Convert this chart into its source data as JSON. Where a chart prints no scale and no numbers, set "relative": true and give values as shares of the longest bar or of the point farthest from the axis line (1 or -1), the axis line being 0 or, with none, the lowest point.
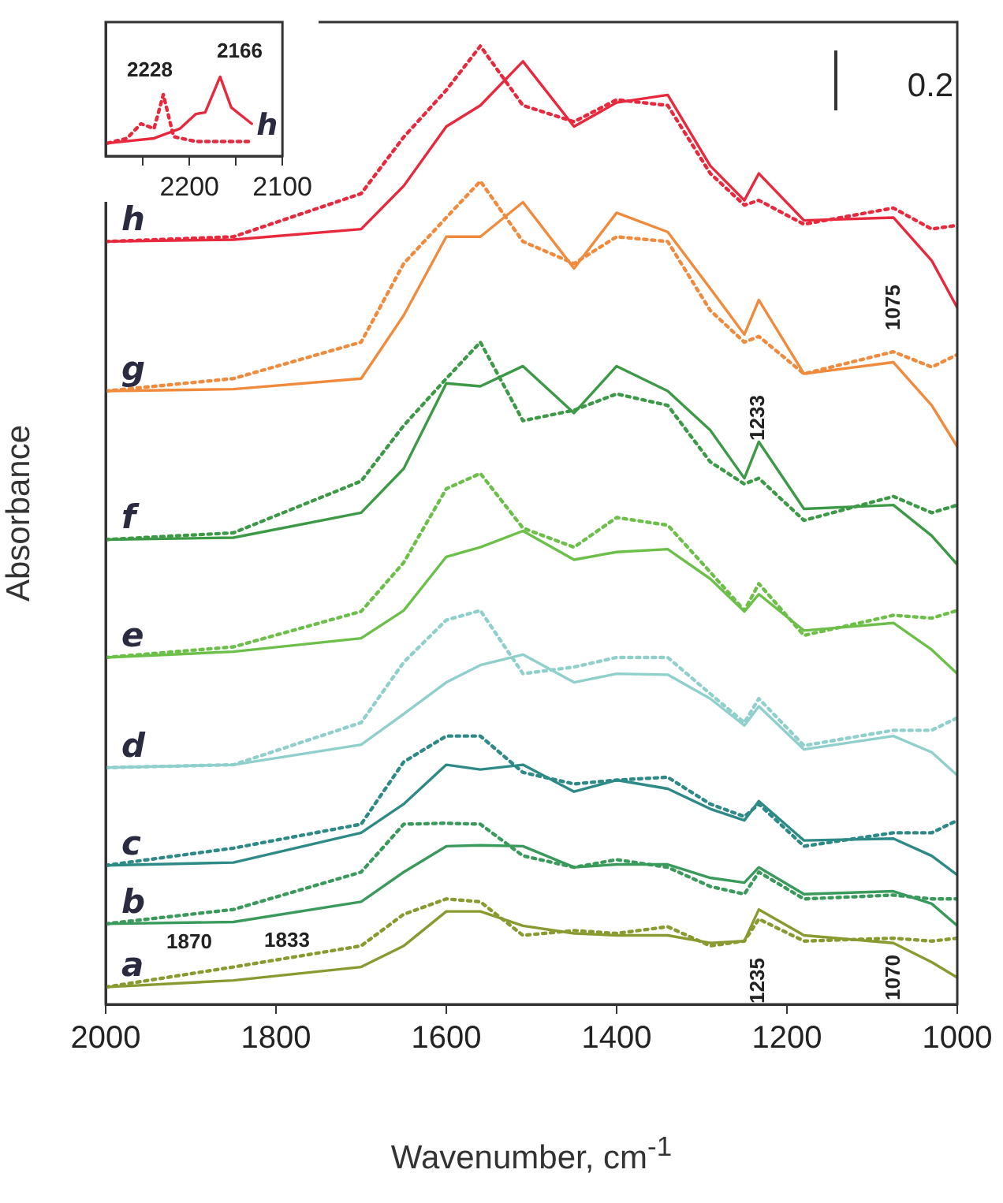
{
  "chart_data": [
    {
      "type": "line",
      "relative": true,
      "xlabel": "Wavenumber, cm$^{-1}$",
      "ylabel": "Absorbance",
      "xlim": [
        2000,
        1000
      ],
      "xticks": [
        2000,
        1800,
        1600,
        1400,
        1200,
        1000
      ],
      "grid": false,
      "legend": false,
      "tick_labels": "x",
      "marker": "none",
      "x": [
        2000,
        1850,
        1700,
        1650,
        1600,
        1560,
        1510,
        1450,
        1400,
        1340,
        1290,
        1250,
        1233,
        1180,
        1075,
        1030,
        1000
      ],
      "series": [
        {
          "name": "h",
          "color": "#e8283c",
          "line_style": "solid",
          "values": [
            0.796,
            0.798,
            0.809,
            0.854,
            0.916,
            0.938,
            0.984,
            0.916,
            0.941,
            0.949,
            0.875,
            0.839,
            0.867,
            0.818,
            0.821,
            0.776,
            0.727
          ]
        },
        {
          "color": "#e8283c",
          "line_style": "dotted",
          "values": [
            0.796,
            0.801,
            0.846,
            0.905,
            0.954,
            1,
            0.938,
            0.921,
            0.944,
            0.938,
            0.867,
            0.834,
            0.839,
            0.814,
            0.831,
            0.809,
            0.813
          ]
        },
        {
          "name": "g",
          "color": "#f08a3c",
          "line_style": "solid",
          "values": [
            0.64,
            0.642,
            0.653,
            0.719,
            0.801,
            0.801,
            0.837,
            0.768,
            0.826,
            0.806,
            0.747,
            0.699,
            0.735,
            0.658,
            0.67,
            0.625,
            0.582
          ]
        },
        {
          "color": "#f08a3c",
          "line_style": "dotted",
          "values": [
            0.64,
            0.653,
            0.691,
            0.773,
            0.821,
            0.859,
            0.796,
            0.773,
            0.801,
            0.796,
            0.724,
            0.691,
            0.697,
            0.658,
            0.681,
            0.665,
            0.678
          ]
        },
        {
          "name": "f",
          "color": "#3c9a46",
          "line_style": "solid",
          "values": [
            0.485,
            0.487,
            0.513,
            0.559,
            0.648,
            0.645,
            0.666,
            0.617,
            0.666,
            0.64,
            0.599,
            0.549,
            0.587,
            0.517,
            0.521,
            0.489,
            0.459
          ]
        },
        {
          "color": "#3c9a46",
          "line_style": "dotted",
          "values": [
            0.485,
            0.492,
            0.546,
            0.604,
            0.653,
            0.691,
            0.609,
            0.62,
            0.637,
            0.625,
            0.566,
            0.543,
            0.549,
            0.505,
            0.53,
            0.513,
            0.521
          ]
        },
        {
          "name": "e",
          "color": "#6cc04a",
          "line_style": "solid",
          "values": [
            0.362,
            0.368,
            0.382,
            0.411,
            0.467,
            0.477,
            0.494,
            0.464,
            0.472,
            0.475,
            0.444,
            0.41,
            0.428,
            0.39,
            0.398,
            0.37,
            0.345
          ]
        },
        {
          "color": "#6cc04a",
          "line_style": "dotted",
          "values": [
            0.362,
            0.373,
            0.41,
            0.461,
            0.538,
            0.554,
            0.497,
            0.477,
            0.508,
            0.5,
            0.451,
            0.411,
            0.439,
            0.385,
            0.406,
            0.403,
            0.411
          ]
        },
        {
          "name": "d",
          "color": "#8fd0cc",
          "line_style": "solid",
          "values": [
            0.247,
            0.25,
            0.271,
            0.303,
            0.336,
            0.354,
            0.365,
            0.336,
            0.345,
            0.344,
            0.319,
            0.291,
            0.311,
            0.266,
            0.28,
            0.263,
            0.239
          ]
        },
        {
          "color": "#8fd0cc",
          "line_style": "dotted",
          "values": [
            0.247,
            0.25,
            0.294,
            0.357,
            0.401,
            0.411,
            0.345,
            0.352,
            0.362,
            0.362,
            0.324,
            0.294,
            0.319,
            0.27,
            0.286,
            0.286,
            0.299
          ]
        },
        {
          "name": "c",
          "color": "#2e8a86",
          "line_style": "solid",
          "values": [
            0.145,
            0.148,
            0.179,
            0.209,
            0.25,
            0.245,
            0.25,
            0.222,
            0.234,
            0.225,
            0.204,
            0.192,
            0.212,
            0.171,
            0.173,
            0.155,
            0.135
          ]
        },
        {
          "color": "#2e8a86",
          "line_style": "dotted",
          "values": [
            0.145,
            0.163,
            0.188,
            0.253,
            0.28,
            0.28,
            0.242,
            0.23,
            0.234,
            0.237,
            0.209,
            0.196,
            0.209,
            0.165,
            0.179,
            0.179,
            0.192
          ]
        },
        {
          "name": "b",
          "color": "#3a9a5c",
          "line_style": "solid",
          "values": [
            0.084,
            0.086,
            0.107,
            0.138,
            0.165,
            0.166,
            0.165,
            0.143,
            0.146,
            0.146,
            0.132,
            0.127,
            0.143,
            0.115,
            0.118,
            0.105,
            0.082
          ]
        },
        {
          "color": "#3a9a5c",
          "line_style": "dotted",
          "values": [
            0.084,
            0.099,
            0.138,
            0.188,
            0.189,
            0.188,
            0.155,
            0.143,
            0.151,
            0.143,
            0.123,
            0.115,
            0.138,
            0.11,
            0.114,
            0.11,
            0.11
          ]
        },
        {
          "name": "a",
          "color": "#8a9a30",
          "line_style": "solid",
          "values": [
            0.018,
            0.025,
            0.039,
            0.061,
            0.097,
            0.097,
            0.082,
            0.074,
            0.072,
            0.072,
            0.064,
            0.066,
            0.099,
            0.072,
            0.064,
            0.044,
            0.028
          ]
        },
        {
          "color": "#8a9a30",
          "line_style": "dotted",
          "values": [
            0.018,
            0.039,
            0.061,
            0.094,
            0.11,
            0.107,
            0.072,
            0.077,
            0.074,
            0.081,
            0.061,
            0.066,
            0.089,
            0.066,
            0.069,
            0.066,
            0.069
          ]
        }
      ],
      "annotations": [
        "0.2",
        "1870",
        "1833",
        "1235",
        "1070",
        "1233",
        "1075"
      ]
    },
    {
      "type": "line",
      "relative": true,
      "xlim": [
        2290,
        2100
      ],
      "xticks": [
        {
          "value": 2250,
          "label": null
        },
        2200,
        {
          "value": 2150,
          "label": null
        },
        2100
      ],
      "grid": false,
      "legend": false,
      "tick_labels": "x",
      "marker": "none",
      "series": [
        {
          "name": "h",
          "color": "#e8283c",
          "line_style": "solid",
          "x": [
            2288,
            2238,
            2210,
            2193,
            2183,
            2167,
            2155,
            2133
          ],
          "values": [
            0.163,
            0.224,
            0.347,
            0.531,
            0.551,
            1,
            0.612,
            0.408
          ]
        },
        {
          "color": "#e8283c",
          "line_style": "dotted",
          "x": [
            2288,
            2267,
            2252,
            2238,
            2228,
            2217,
            2193,
            2135
          ],
          "values": [
            0.163,
            0.224,
            0.408,
            0.347,
            0.776,
            0.245,
            0.184,
            0.184
          ]
        }
      ],
      "annotations": [
        "2228",
        "2166"
      ]
    }
  ]
}
